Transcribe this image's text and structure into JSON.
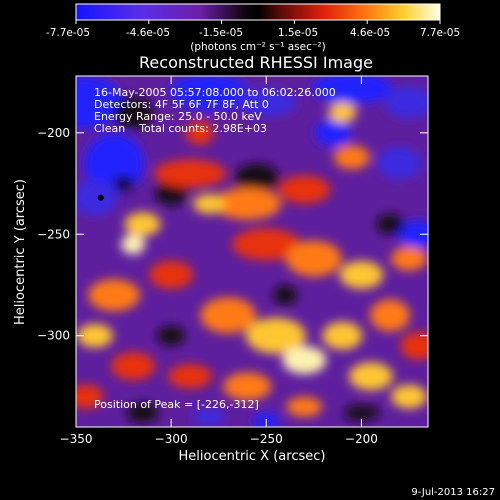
{
  "chart_data": {
    "type": "heatmap",
    "title": "Reconstructed RHESSI Image",
    "xlabel": "Heliocentric X (arcsec)",
    "ylabel": "Heliocentric Y (arcsec)",
    "xlim": [
      -350,
      -165
    ],
    "ylim": [
      -345,
      -172
    ],
    "x_ticks": [
      -350,
      -300,
      -250,
      -200
    ],
    "y_ticks": [
      -200,
      -250,
      -300
    ],
    "colorbar": {
      "min": -7.7e-05,
      "max": 7.7e-05,
      "tick_labels": [
        "-7.7e-05",
        "-4.6e-05",
        "-1.5e-05",
        "1.5e-05",
        "4.6e-05",
        "7.7e-05"
      ],
      "unit_label": "(photons cm⁻² s⁻¹ asec⁻²)"
    },
    "annotations": {
      "time_range": "16-May-2005 05:57:08.000 to 06:02:26.000",
      "detectors": "Detectors: 4F 5F 6F 7F 8F, Att 0",
      "energy_range": "Energy Range: 25.0 - 50.0 keV",
      "clean_counts": "Clean    Total counts: 2.98E+03",
      "peak_position": "Position of Peak = [-226,-312]"
    },
    "marker": {
      "label": "",
      "x": -337,
      "y": -232
    },
    "grid": false,
    "timestamp": "9-Jul-2013 16:27"
  },
  "colors": {
    "background": "#000000",
    "low": "#2020ff",
    "mid_low": "#7a28d8",
    "zero": "#000000",
    "mid_high": "#ff3a1a",
    "high": "#ffffe0"
  }
}
